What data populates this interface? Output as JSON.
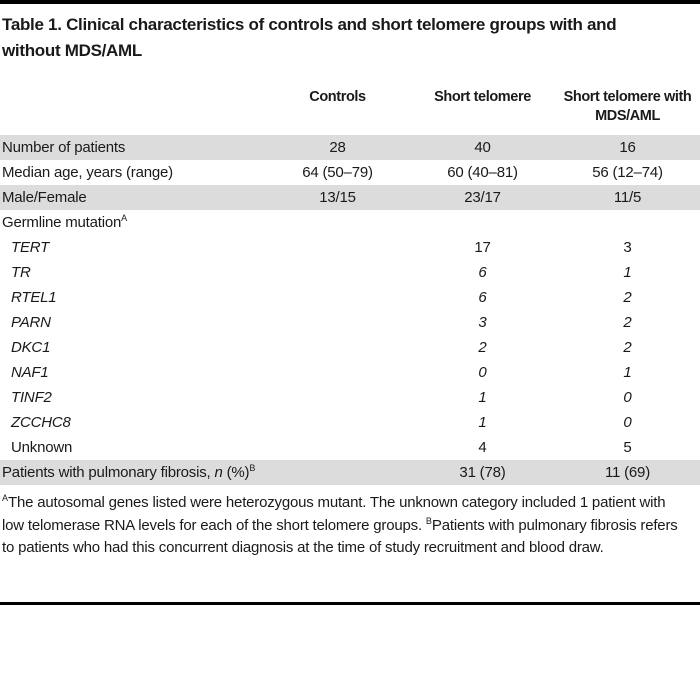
{
  "title": "Table 1. Clinical characteristics of controls and short telomere groups with and without MDS/AML",
  "header": {
    "columns": [
      "Controls",
      "Short telomere",
      "Short telomere with MDS/AML"
    ]
  },
  "rows": [
    {
      "label": [
        {
          "t": "Number of patients"
        }
      ],
      "values": [
        "28",
        "40",
        "16"
      ],
      "shaded": true,
      "indent": false,
      "italic_values": false
    },
    {
      "label": [
        {
          "t": "Median age, years (range)"
        }
      ],
      "values": [
        "64 (50–79)",
        "60 (40–81)",
        "56 (12–74)"
      ],
      "shaded": false,
      "indent": false,
      "italic_values": false
    },
    {
      "label": [
        {
          "t": "Male/Female"
        }
      ],
      "values": [
        "13/15",
        "23/17",
        "11/5"
      ],
      "shaded": true,
      "indent": false,
      "italic_values": false
    },
    {
      "label": [
        {
          "t": "Germline mutation"
        },
        {
          "t": "A",
          "sup": true
        }
      ],
      "values": [
        "",
        "",
        ""
      ],
      "shaded": false,
      "indent": false,
      "italic_values": false
    },
    {
      "label": [
        {
          "t": "TERT",
          "i": true
        }
      ],
      "values": [
        "",
        "17",
        "3"
      ],
      "shaded": false,
      "indent": true,
      "italic_values": false
    },
    {
      "label": [
        {
          "t": "TR",
          "i": true
        }
      ],
      "values": [
        "",
        "6",
        "1"
      ],
      "shaded": false,
      "indent": true,
      "italic_values": true
    },
    {
      "label": [
        {
          "t": "RTEL1",
          "i": true
        }
      ],
      "values": [
        "",
        "6",
        "2"
      ],
      "shaded": false,
      "indent": true,
      "italic_values": true
    },
    {
      "label": [
        {
          "t": "PARN",
          "i": true
        }
      ],
      "values": [
        "",
        "3",
        "2"
      ],
      "shaded": false,
      "indent": true,
      "italic_values": true
    },
    {
      "label": [
        {
          "t": "DKC1",
          "i": true
        }
      ],
      "values": [
        "",
        "2",
        "2"
      ],
      "shaded": false,
      "indent": true,
      "italic_values": true
    },
    {
      "label": [
        {
          "t": "NAF1",
          "i": true
        }
      ],
      "values": [
        "",
        "0",
        "1"
      ],
      "shaded": false,
      "indent": true,
      "italic_values": true
    },
    {
      "label": [
        {
          "t": "TINF2",
          "i": true
        }
      ],
      "values": [
        "",
        "1",
        "0"
      ],
      "shaded": false,
      "indent": true,
      "italic_values": true
    },
    {
      "label": [
        {
          "t": "ZCCHC8",
          "i": true
        }
      ],
      "values": [
        "",
        "1",
        "0"
      ],
      "shaded": false,
      "indent": true,
      "italic_values": true
    },
    {
      "label": [
        {
          "t": "Unknown"
        }
      ],
      "values": [
        "",
        "4",
        "5"
      ],
      "shaded": false,
      "indent": true,
      "italic_values": false
    },
    {
      "label": [
        {
          "t": "Patients with pulmonary fibrosis, "
        },
        {
          "t": "n",
          "i": true
        },
        {
          "t": " (%)"
        },
        {
          "t": "B",
          "sup": true
        }
      ],
      "values": [
        "",
        "31 (78)",
        "11 (69)"
      ],
      "shaded": true,
      "indent": false,
      "italic_values": false
    }
  ],
  "footnote": [
    {
      "t": "A",
      "sup": true
    },
    {
      "t": "The autosomal genes listed were heterozygous mutant. The unknown category included 1 patient with low telomerase RNA levels for each of the short telomere groups. "
    },
    {
      "t": "B",
      "sup": true
    },
    {
      "t": "Patients with pulmonary fibrosis refers to patients who had this concurrent diagnosis at the time of study recruitment and blood draw."
    }
  ],
  "colors": {
    "text": "#1a1a1a",
    "row_shade": "#dcdcdc",
    "rule": "#000000"
  }
}
